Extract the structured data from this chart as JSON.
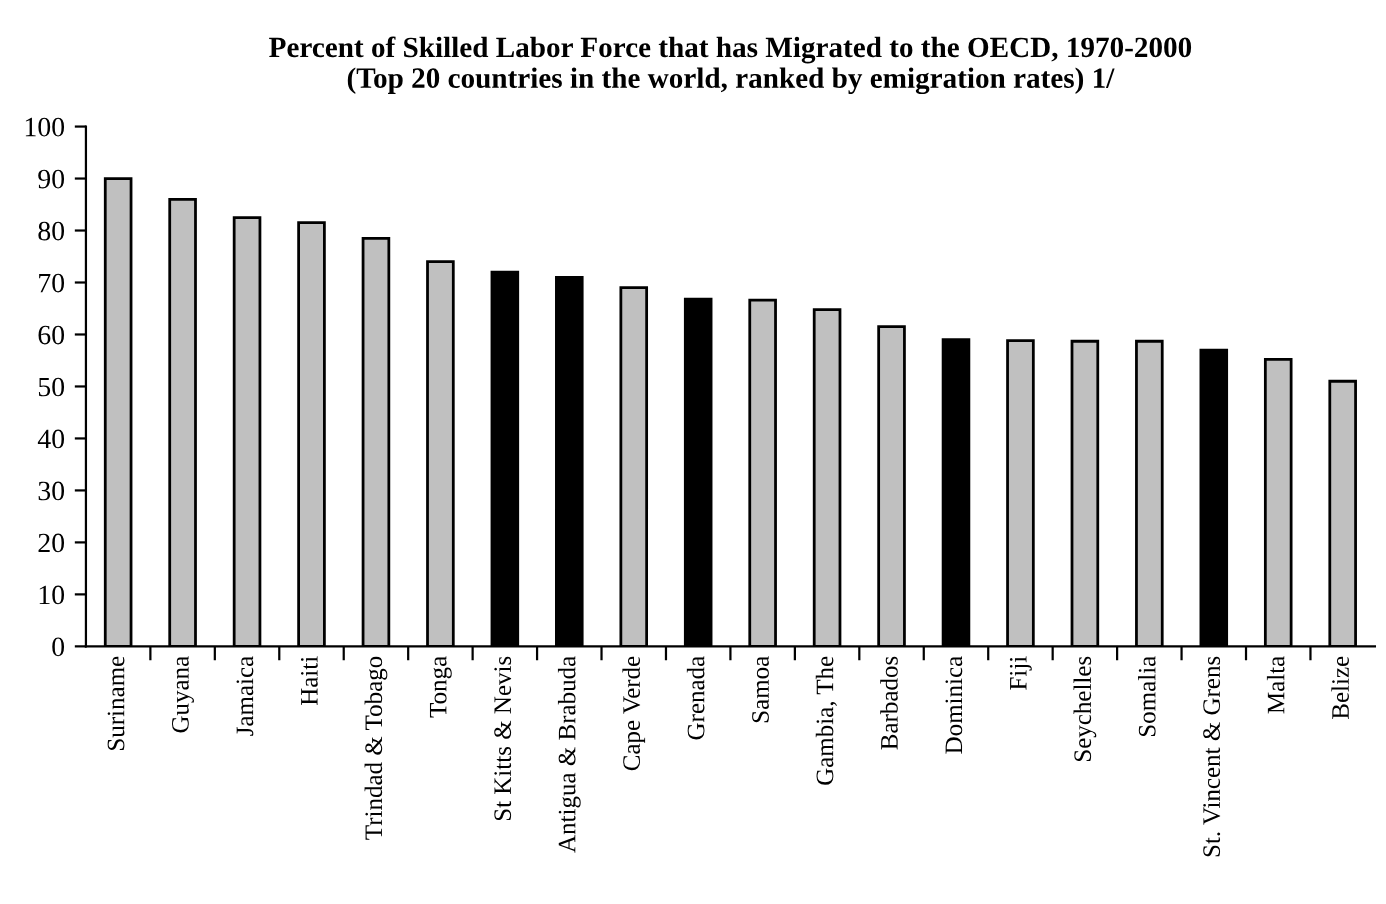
{
  "chart_data": {
    "type": "bar",
    "title": "Percent of Skilled Labor Force that has Migrated to the OECD, 1970-2000\n(Top 20 countries in the world, ranked by emigration rates) 1/",
    "categories": [
      "Suriname",
      "Guyana",
      "Jamaica",
      "Haiti",
      "Trindad & Tobago",
      "Tonga",
      "St Kitts & Nevis",
      "Antigua & Brabuda",
      "Cape Verde",
      "Grenada",
      "Samoa",
      "Gambia, The",
      "Barbados",
      "Dominica",
      "Fiji",
      "Seychelles",
      "Somalia",
      "St. Vincent & Grens",
      "Malta",
      "Belize"
    ],
    "values": [
      90,
      86,
      82.5,
      81.5,
      78.5,
      74,
      72,
      71,
      69,
      66.8,
      66.6,
      64.8,
      61.5,
      59,
      58.8,
      58.7,
      58.7,
      57,
      55.2,
      51
    ],
    "colors": [
      "#c0c0c0",
      "#c0c0c0",
      "#c0c0c0",
      "#c0c0c0",
      "#c0c0c0",
      "#c0c0c0",
      "#000000",
      "#000000",
      "#c0c0c0",
      "#000000",
      "#c0c0c0",
      "#c0c0c0",
      "#c0c0c0",
      "#000000",
      "#c0c0c0",
      "#c0c0c0",
      "#c0c0c0",
      "#000000",
      "#c0c0c0",
      "#c0c0c0"
    ],
    "ylim": [
      0,
      100
    ],
    "yticks": [
      0,
      10,
      20,
      30,
      40,
      50,
      60,
      70,
      80,
      90,
      100
    ],
    "grid": false,
    "legend": false
  }
}
